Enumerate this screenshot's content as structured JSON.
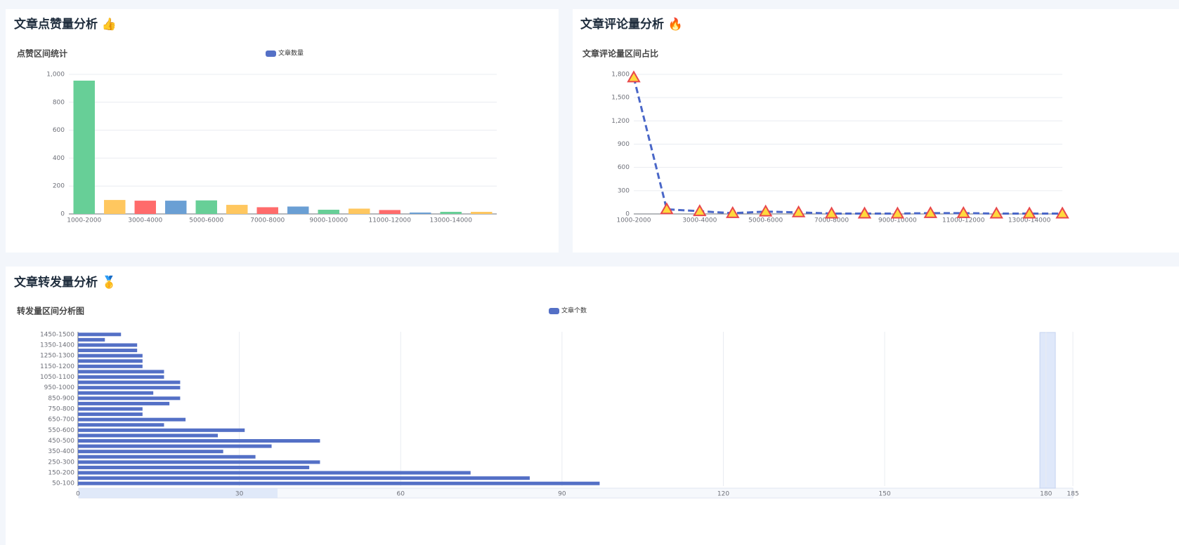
{
  "chart_data": [
    {
      "type": "bar",
      "panel_title": "文章点赞量分析 👍",
      "title": "点赞区间统计",
      "categories": [
        "1000-2000",
        null,
        "3000-4000",
        null,
        "5000-6000",
        null,
        "7000-8000",
        null,
        "9000-10000",
        null,
        "11000-12000",
        null,
        "13000-14000",
        null
      ],
      "series": [
        {
          "name": "文章数量",
          "color": "#5470c6",
          "colors": [
            "#67cf97",
            "#ffc75f",
            "#ff6b6b",
            "#6a9fd4",
            "#67cf97",
            "#ffc75f",
            "#ff6b6b",
            "#6a9fd4",
            "#67cf97",
            "#ffc75f",
            "#ff6b6b",
            "#6a9fd4",
            "#67cf97",
            "#ffc75f"
          ],
          "values": [
            955,
            100,
            95,
            95,
            97,
            65,
            48,
            53,
            30,
            38,
            28,
            10,
            15,
            15
          ]
        }
      ],
      "ylim": [
        0,
        1000
      ],
      "yticks": [
        0,
        200,
        400,
        600,
        800,
        {
          "value": 1000,
          "label": "1,000"
        }
      ],
      "grid": true
    },
    {
      "type": "line",
      "panel_title": "文章评论量分析 🔥",
      "title": "文章评论量区间占比",
      "categories": [
        "1000-2000",
        null,
        "3000-4000",
        null,
        "5000-6000",
        null,
        "7000-8000",
        null,
        "9000-10000",
        null,
        "11000-12000",
        null,
        "13000-14000",
        null
      ],
      "color": "#4a67c8",
      "marker_color": "#ffd93d",
      "marker_edge": "#e8474c",
      "values": [
        1760,
        60,
        35,
        10,
        30,
        20,
        5,
        5,
        5,
        10,
        10,
        5,
        5,
        5
      ],
      "ylim": [
        0,
        1800
      ],
      "yticks": [
        0,
        300,
        600,
        900,
        {
          "value": 1200,
          "label": "1,200"
        },
        {
          "value": 1500,
          "label": "1,500"
        },
        {
          "value": 1800,
          "label": "1,800"
        }
      ],
      "grid": true
    },
    {
      "type": "hbar",
      "panel_title": "文章转发量分析 🥇",
      "title": "转发量区间分析图",
      "categories": [
        "50-100",
        null,
        "150-200",
        null,
        "250-300",
        null,
        "350-400",
        null,
        "450-500",
        null,
        "550-600",
        null,
        "650-700",
        null,
        "750-800",
        null,
        "850-900",
        null,
        "950-1000",
        null,
        "1050-1100",
        null,
        "1150-1200",
        null,
        "1250-1300",
        null,
        "1350-1400",
        null,
        "1450-1500"
      ],
      "series": [
        {
          "name": "文章个数",
          "color": "#5470c6",
          "values": [
            97,
            84,
            73,
            43,
            45,
            33,
            27,
            36,
            45,
            26,
            31,
            16,
            20,
            12,
            12,
            17,
            19,
            14,
            19,
            19,
            16,
            16,
            12,
            12,
            12,
            11,
            11,
            5,
            8
          ]
        }
      ],
      "xlim": [
        0,
        185
      ],
      "xticks": [
        0,
        30,
        60,
        90,
        120,
        150,
        180,
        185
      ],
      "grid": true
    }
  ]
}
